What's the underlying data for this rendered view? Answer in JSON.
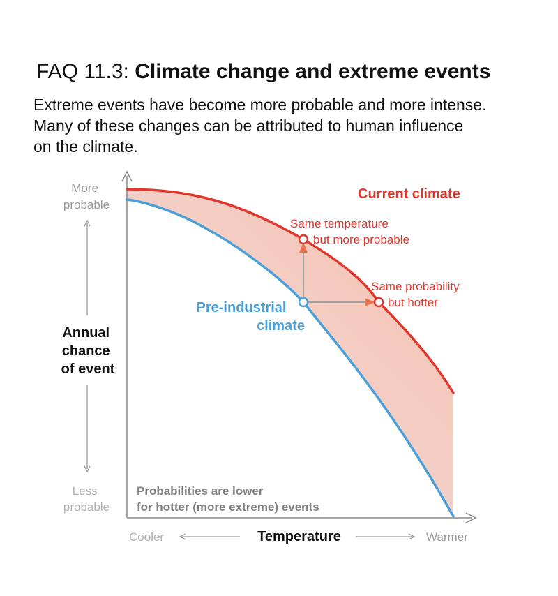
{
  "header": {
    "title_prefix": "FAQ 11.3:",
    "title_main": "Climate change and extreme events",
    "subtitle_lines": [
      "Extreme events have become more probable and more intense.",
      "Many of these changes can be attributed to human influence",
      "on the climate."
    ]
  },
  "diagram": {
    "y_axis": {
      "top_label": [
        "More",
        "probable"
      ],
      "title": [
        "Annual",
        "chance",
        "of event"
      ],
      "bottom_label": [
        "Less",
        "probable"
      ]
    },
    "x_axis": {
      "left_label": "Cooler",
      "title": "Temperature",
      "right_label": "Warmer"
    },
    "curves": {
      "current": "Current climate",
      "preindustrial": [
        "Pre-industrial",
        "climate"
      ]
    },
    "annotations": {
      "same_temperature": [
        "Same temperature",
        "but more probable"
      ],
      "same_probability": [
        "Same probability",
        "but hotter"
      ],
      "note": [
        "Probabilities are lower",
        "for hotter (more extreme) events"
      ]
    },
    "colors": {
      "current": "#e0362c",
      "preindustrial": "#4a9fd8",
      "axis": "#8a8a8a",
      "muted_text": "#9a9a9a",
      "note_text": "#808080",
      "arrow": "#e8714f"
    }
  }
}
